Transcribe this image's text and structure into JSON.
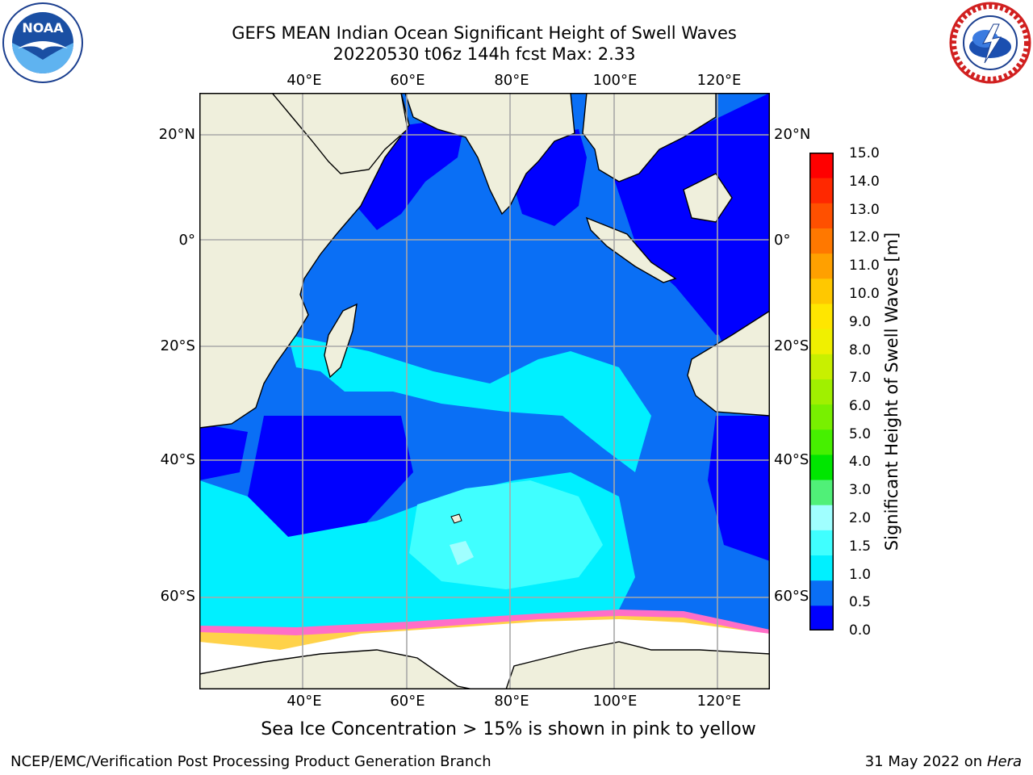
{
  "header": {
    "title_line1": "GEFS MEAN Indian Ocean Significant Height of Swell Waves",
    "title_line2": "20220530 t06z 144h fcst   Max: 2.33"
  },
  "logos": {
    "left": "noaa-logo",
    "right": "nws-logo"
  },
  "map": {
    "lon_labels": [
      "40°E",
      "60°E",
      "80°E",
      "100°E",
      "120°E"
    ],
    "lat_labels": [
      "20°N",
      "0°",
      "20°S",
      "40°S",
      "60°S"
    ],
    "land_color": "#efefdc",
    "ocean_dark": "#0000ff",
    "ocean_mid": "#0a6ff5",
    "ocean_light": "#00f0ff",
    "ocean_lighter": "#40ffff",
    "ice_color": "#ffffff"
  },
  "colorbar": {
    "ticks": [
      "15.0",
      "14.0",
      "13.0",
      "12.0",
      "11.0",
      "10.0",
      "9.0",
      "8.0",
      "7.0",
      "6.0",
      "5.0",
      "4.0",
      "3.0",
      "2.0",
      "1.5",
      "1.0",
      "0.5",
      "0.0"
    ],
    "colors": [
      "#0000ff",
      "#0a6ff5",
      "#00f0ff",
      "#40ffff",
      "#a0ffff",
      "#50f078",
      "#00e600",
      "#46f000",
      "#78f000",
      "#a0f000",
      "#c8f000",
      "#f0f000",
      "#ffe600",
      "#ffc800",
      "#ffa000",
      "#ff7800",
      "#ff5000",
      "#ff2800",
      "#ff0000"
    ],
    "label": "Significant Height of Swell Waves [m]"
  },
  "note": "Sea Ice Concentration > 15% is shown in pink to yellow",
  "footer": {
    "left": "NCEP/EMC/Verification Post Processing Product Generation Branch",
    "right_date": "31 May 2022 on",
    "right_host": "Hera"
  }
}
